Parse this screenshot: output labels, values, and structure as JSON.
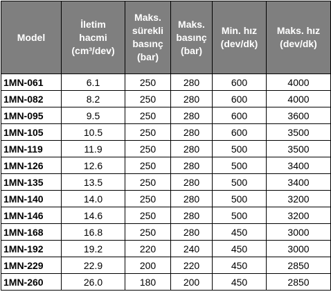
{
  "table": {
    "header": [
      [
        "Model"
      ],
      [
        "İletim",
        "hacmi",
        "(cm³/dev)"
      ],
      [
        "Maks.",
        "sürekli",
        "basınç",
        "(bar)"
      ],
      [
        "Maks.",
        "basınç",
        "(bar)"
      ],
      [
        "Min. hız",
        "(dev/dk)"
      ],
      [
        "Maks. hız",
        "(dev/dk)"
      ]
    ],
    "rows": [
      [
        "1MN-061",
        "6.1",
        "250",
        "280",
        "600",
        "4000"
      ],
      [
        "1MN-082",
        "8.2",
        "250",
        "280",
        "600",
        "4000"
      ],
      [
        "1MN-095",
        "9.5",
        "250",
        "280",
        "600",
        "3600"
      ],
      [
        "1MN-105",
        "10.5",
        "250",
        "280",
        "600",
        "3500"
      ],
      [
        "1MN-119",
        "11.9",
        "250",
        "280",
        "500",
        "3500"
      ],
      [
        "1MN-126",
        "12.6",
        "250",
        "280",
        "500",
        "3400"
      ],
      [
        "1MN-135",
        "13.5",
        "250",
        "280",
        "500",
        "3400"
      ],
      [
        "1MN-140",
        "14.0",
        "250",
        "280",
        "500",
        "3200"
      ],
      [
        "1MN-146",
        "14.6",
        "250",
        "280",
        "500",
        "3200"
      ],
      [
        "1MN-168",
        "16.8",
        "250",
        "280",
        "450",
        "3000"
      ],
      [
        "1MN-192",
        "19.2",
        "220",
        "240",
        "450",
        "3000"
      ],
      [
        "1MN-229",
        "22.9",
        "200",
        "220",
        "450",
        "2850"
      ],
      [
        "1MN-260",
        "26.0",
        "180",
        "200",
        "450",
        "2850"
      ]
    ]
  }
}
